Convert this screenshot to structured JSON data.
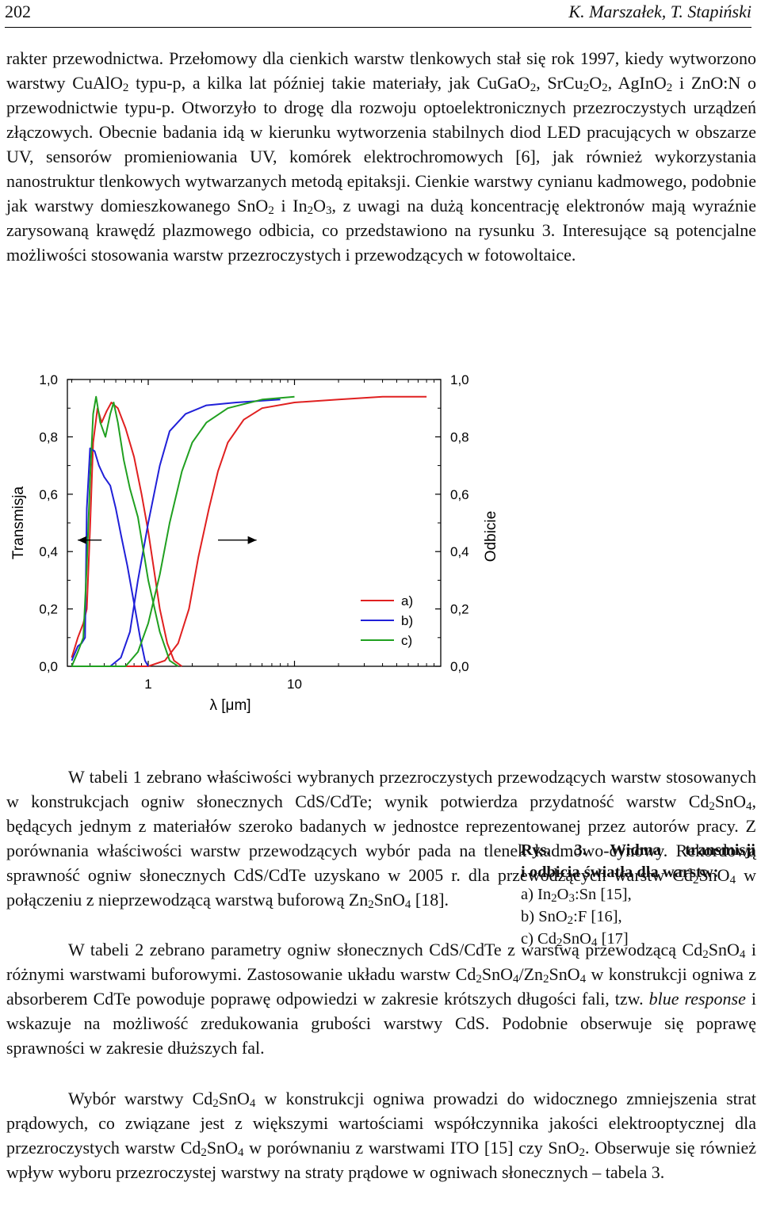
{
  "header": {
    "page_number": "202",
    "running_title": "K. Marszałek, T. Stapiński"
  },
  "paragraph1": {
    "s1": "rakter przewodnictwa. Przełomowy dla cienkich warstw tlenkowych stał się rok 1997, kiedy wytworzono warstwy CuAlO",
    "s2": " typu-p, a kilka lat później takie materiały, jak CuGaO",
    "s3": ", SrCu",
    "s4": "O",
    "s5": ", AgInO",
    "s6": " i ZnO:N o przewodnictwie typu-p. Otworzyło to drogę dla rozwoju optoelektronicznych przezroczystych urządzeń złączowych. Obecnie badania idą w kierunku wytworzenia stabilnych diod LED pracujących w obszarze UV, sensorów promieniowania UV, komórek elektrochromowych [6], jak również wykorzystania nanostruktur tlenkowych wytwarzanych metodą epitaksji. Cienkie warstwy cynianu kadmowego, podobnie jak warstwy domieszkowanego SnO",
    "s7": " i In",
    "s8": "O",
    "s9": ", z uwagi na dużą koncentrację elektronów mają wyraźnie zarysowaną krawędź plazmowego odbicia, co przedstawiono na rysunku 3. Interesujące są potencjalne możliwości stosowania warstw przezroczystych i przewodzących w fotowoltaice."
  },
  "sub": {
    "two": "2",
    "three": "3",
    "four": "4"
  },
  "chart_data": {
    "type": "line",
    "title": "",
    "xlabel": "λ [μm]",
    "xscale": "log",
    "xlim": [
      0.28,
      100
    ],
    "x_ticks": [
      "1",
      "10"
    ],
    "ylabel_left": "Transmisja",
    "ylabel_right": "Odbicie",
    "ylim": [
      0.0,
      1.0
    ],
    "y_ticks_left": [
      "0,0",
      "0,2",
      "0,4",
      "0,6",
      "0,8",
      "1,0"
    ],
    "y_ticks_right": [
      "0,0",
      "0,2",
      "0,4",
      "0,6",
      "0,8",
      "1,0"
    ],
    "legend": [
      "a)",
      "b)",
      "c)"
    ],
    "series": [
      {
        "name": "a) transmisja",
        "color": "#e02020",
        "points": [
          [
            0.3,
            0.03
          ],
          [
            0.33,
            0.1
          ],
          [
            0.36,
            0.15
          ],
          [
            0.38,
            0.2
          ],
          [
            0.4,
            0.48
          ],
          [
            0.42,
            0.78
          ],
          [
            0.45,
            0.9
          ],
          [
            0.48,
            0.85
          ],
          [
            0.52,
            0.89
          ],
          [
            0.56,
            0.92
          ],
          [
            0.62,
            0.9
          ],
          [
            0.7,
            0.83
          ],
          [
            0.8,
            0.73
          ],
          [
            0.9,
            0.6
          ],
          [
            1.0,
            0.47
          ],
          [
            1.1,
            0.33
          ],
          [
            1.2,
            0.2
          ],
          [
            1.35,
            0.08
          ],
          [
            1.5,
            0.02
          ],
          [
            1.7,
            0.0
          ]
        ]
      },
      {
        "name": "a) odbicie",
        "color": "#e02020",
        "points": [
          [
            0.3,
            0.0
          ],
          [
            1.0,
            0.0
          ],
          [
            1.3,
            0.02
          ],
          [
            1.6,
            0.08
          ],
          [
            1.9,
            0.2
          ],
          [
            2.2,
            0.38
          ],
          [
            2.6,
            0.55
          ],
          [
            3.0,
            0.68
          ],
          [
            3.5,
            0.78
          ],
          [
            4.5,
            0.86
          ],
          [
            6,
            0.9
          ],
          [
            10,
            0.92
          ],
          [
            20,
            0.93
          ],
          [
            40,
            0.94
          ],
          [
            80,
            0.94
          ]
        ]
      },
      {
        "name": "b) transmisja",
        "color": "#2020d8",
        "points": [
          [
            0.3,
            0.02
          ],
          [
            0.33,
            0.07
          ],
          [
            0.35,
            0.08
          ],
          [
            0.37,
            0.1
          ],
          [
            0.38,
            0.55
          ],
          [
            0.4,
            0.76
          ],
          [
            0.43,
            0.75
          ],
          [
            0.46,
            0.7
          ],
          [
            0.5,
            0.66
          ],
          [
            0.55,
            0.63
          ],
          [
            0.6,
            0.55
          ],
          [
            0.65,
            0.46
          ],
          [
            0.72,
            0.35
          ],
          [
            0.8,
            0.22
          ],
          [
            0.88,
            0.1
          ],
          [
            0.95,
            0.02
          ],
          [
            1.0,
            0.0
          ]
        ]
      },
      {
        "name": "b) odbicie",
        "color": "#2020d8",
        "points": [
          [
            0.3,
            0.0
          ],
          [
            0.55,
            0.0
          ],
          [
            0.65,
            0.03
          ],
          [
            0.75,
            0.12
          ],
          [
            0.85,
            0.3
          ],
          [
            1.0,
            0.5
          ],
          [
            1.2,
            0.7
          ],
          [
            1.4,
            0.82
          ],
          [
            1.8,
            0.88
          ],
          [
            2.5,
            0.91
          ],
          [
            4,
            0.92
          ],
          [
            8,
            0.93
          ]
        ]
      },
      {
        "name": "c) transmisja",
        "color": "#20a020",
        "points": [
          [
            0.3,
            0.0
          ],
          [
            0.33,
            0.05
          ],
          [
            0.36,
            0.1
          ],
          [
            0.38,
            0.35
          ],
          [
            0.4,
            0.65
          ],
          [
            0.42,
            0.88
          ],
          [
            0.44,
            0.94
          ],
          [
            0.47,
            0.85
          ],
          [
            0.51,
            0.8
          ],
          [
            0.55,
            0.88
          ],
          [
            0.58,
            0.92
          ],
          [
            0.62,
            0.85
          ],
          [
            0.68,
            0.72
          ],
          [
            0.75,
            0.62
          ],
          [
            0.85,
            0.52
          ],
          [
            1.0,
            0.3
          ],
          [
            1.2,
            0.12
          ],
          [
            1.4,
            0.02
          ],
          [
            1.6,
            0.0
          ]
        ]
      },
      {
        "name": "c) odbicie",
        "color": "#20a020",
        "points": [
          [
            0.3,
            0.0
          ],
          [
            0.7,
            0.0
          ],
          [
            0.85,
            0.05
          ],
          [
            1.0,
            0.15
          ],
          [
            1.2,
            0.32
          ],
          [
            1.4,
            0.5
          ],
          [
            1.7,
            0.68
          ],
          [
            2.0,
            0.78
          ],
          [
            2.5,
            0.85
          ],
          [
            3.5,
            0.9
          ],
          [
            6,
            0.93
          ],
          [
            10,
            0.94
          ]
        ]
      }
    ],
    "arrows": [
      {
        "direction": "left",
        "x_from": 0.48,
        "x_to": 0.33,
        "y": 0.44
      },
      {
        "direction": "right",
        "x_from": 3.0,
        "x_to": 5.5,
        "y": 0.44
      }
    ]
  },
  "caption": {
    "label": "Rys. 3.",
    "title1": " Widma transmisji",
    "title2": "i odbicia światła dla warstw:",
    "a_pre": "a) In",
    "a_mid": "O",
    "a_post": ":Sn [15],",
    "b_pre": "b) SnO",
    "b_post": ":F [16],",
    "c_pre": "c) Cd",
    "c_mid": "SnO",
    "c_post": " [17]"
  },
  "paragraph2": {
    "s1": "W tabeli 1 zebrano właściwości wybranych przezroczystych przewodzących warstw stosowanych w konstrukcjach ogniw słonecznych CdS/CdTe; wynik potwierdza przydatność warstw Cd",
    "s2": "SnO",
    "s3": ", będących jednym z materiałów szeroko badanych w jednostce reprezentowanej przez autorów pracy. Z porównania właściwości warstw przewodzących wybór pada na tlenek kadmowo-cynowy. Rekordową sprawność ogniw słonecznych CdS/CdTe uzyskano w 2005 r. dla przewodzących warstw Cd",
    "s4": "SnO",
    "s5": " w połączeniu z nieprzewodzącą warstwą buforową Zn",
    "s6": "SnO",
    "s7": " [18]."
  },
  "paragraph3": {
    "s1": "W tabeli 2 zebrano parametry ogniw słonecznych CdS/CdTe z warstwą przewodzącą Cd",
    "s2": "SnO",
    "s3": " i różnymi warstwami buforowymi. Zastosowanie układu warstw Cd",
    "s4": "SnO",
    "s5": "/Zn",
    "s6": "SnO",
    "s7": " w konstrukcji ogniwa z absorberem CdTe powoduje poprawę odpowiedzi w zakresie krótszych długości fali, tzw. ",
    "s8": "blue response",
    "s9": " i wskazuje na możliwość zredukowania grubości warstwy CdS. Podobnie obserwuje się poprawę sprawności w zakresie dłuższych fal."
  },
  "paragraph4": {
    "s1": "Wybór warstwy Cd",
    "s2": "SnO",
    "s3": " w konstrukcji ogniwa prowadzi do widocznego zmniejszenia strat prądowych, co związane jest z większymi wartościami współczynnika jakości elektrooptycznej dla przezroczystych warstw Cd",
    "s4": "SnO",
    "s5": " w porównaniu z warstwami ITO [15] czy SnO",
    "s6": ". Obserwuje się również wpływ wyboru przezroczystej warstwy na straty prądowe w ogniwach słonecznych – tabela 3."
  }
}
